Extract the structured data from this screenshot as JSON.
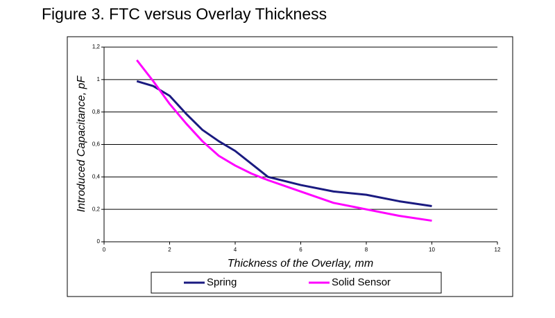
{
  "chart_data": {
    "type": "line",
    "title": "Figure 3. FTC versus Overlay Thickness",
    "x_label": "Thickness of the Overlay, mm",
    "y_label": "Introduced Capacitance, pF",
    "x": [
      1,
      1.5,
      2,
      2.5,
      3,
      3.5,
      4,
      4.5,
      5,
      6,
      7,
      8,
      9,
      10
    ],
    "series": [
      {
        "name": "Spring",
        "color": "#1a1a80",
        "values": [
          0.99,
          0.96,
          0.9,
          0.79,
          0.69,
          0.62,
          0.56,
          0.48,
          0.4,
          0.35,
          0.31,
          0.29,
          0.25,
          0.22
        ]
      },
      {
        "name": "Solid Sensor",
        "color": "#ff00ff",
        "values": [
          1.12,
          0.99,
          0.85,
          0.73,
          0.62,
          0.53,
          0.47,
          0.42,
          0.38,
          0.31,
          0.24,
          0.2,
          0.16,
          0.13
        ]
      }
    ],
    "xlim": [
      0,
      12
    ],
    "xticks": [
      0,
      2,
      4,
      6,
      8,
      10,
      12
    ],
    "ylim": [
      0,
      1.2
    ],
    "yticks": [
      0,
      {
        "value": 0.2,
        "label": "0,2"
      },
      {
        "value": 0.4,
        "label": "0,4"
      },
      {
        "value": 0.6,
        "label": "0,6"
      },
      {
        "value": 0.8,
        "label": "0,8"
      },
      1,
      {
        "value": 1.2,
        "label": "1,2"
      }
    ],
    "grid": true,
    "legend": "bottom"
  }
}
